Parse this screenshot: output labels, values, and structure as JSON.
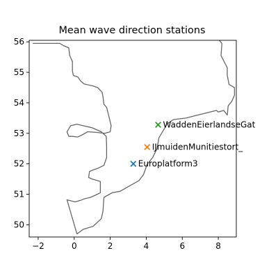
{
  "chart_data": {
    "type": "scatter",
    "title": "Mean wave direction stations",
    "xlabel": "",
    "ylabel": "",
    "xlim": [
      -2.5,
      9.0
    ],
    "ylim": [
      49.6,
      56.05
    ],
    "xticks": [
      -2,
      0,
      2,
      4,
      6,
      8
    ],
    "yticks": [
      50,
      51,
      52,
      53,
      54,
      55,
      56
    ],
    "grid": false,
    "legend": "none",
    "coastline_color": "#666666",
    "points": [
      {
        "name": "Europlatform3",
        "x": 3.28,
        "y": 52.0,
        "marker": "x",
        "color": "#1f77b4"
      },
      {
        "name": "IJmuidenMunitiestort_",
        "x": 4.05,
        "y": 52.55,
        "marker": "x",
        "color": "#ff7f0e"
      },
      {
        "name": "WaddenEierlandseGat",
        "x": 4.66,
        "y": 53.28,
        "marker": "x",
        "color": "#2ca02c"
      }
    ],
    "coastline": [
      [
        [
          -2.3,
          55.95
        ],
        [
          -0.8,
          55.95
        ],
        [
          -0.6,
          55.88
        ],
        [
          -0.3,
          55.8
        ],
        [
          -0.25,
          55.55
        ],
        [
          -0.1,
          55.35
        ],
        [
          -0.1,
          55.05
        ],
        [
          -0.05,
          54.9
        ],
        [
          0.2,
          54.85
        ],
        [
          0.35,
          54.72
        ],
        [
          0.55,
          54.62
        ],
        [
          1.05,
          54.55
        ],
        [
          1.3,
          54.5
        ],
        [
          1.55,
          54.35
        ],
        [
          1.6,
          54.2
        ],
        [
          1.65,
          53.95
        ],
        [
          1.8,
          53.85
        ],
        [
          1.9,
          53.62
        ],
        [
          1.95,
          53.5
        ],
        [
          2.05,
          53.25
        ],
        [
          2.0,
          53.05
        ],
        [
          1.7,
          53.0
        ],
        [
          1.25,
          53.03
        ],
        [
          0.75,
          53.05
        ],
        [
          0.45,
          52.95
        ],
        [
          0.2,
          52.88
        ],
        [
          -0.1,
          52.9
        ],
        [
          -0.3,
          52.9
        ],
        [
          -0.4,
          53.05
        ],
        [
          -0.2,
          53.25
        ],
        [
          0.15,
          53.3
        ],
        [
          0.5,
          53.25
        ],
        [
          1.0,
          53.18
        ],
        [
          1.5,
          53.05
        ],
        [
          1.78,
          52.9
        ],
        [
          1.8,
          52.55
        ],
        [
          1.8,
          52.2
        ],
        [
          1.65,
          51.95
        ],
        [
          1.3,
          51.85
        ],
        [
          1.05,
          51.8
        ],
        [
          0.85,
          51.75
        ],
        [
          0.8,
          51.55
        ],
        [
          1.0,
          51.5
        ],
        [
          1.45,
          51.42
        ],
        [
          1.45,
          51.05
        ],
        [
          1.2,
          50.98
        ],
        [
          0.9,
          50.9
        ],
        [
          0.55,
          50.85
        ],
        [
          0.35,
          50.8
        ],
        [
          0.05,
          50.75
        ],
        [
          -0.4,
          50.82
        ],
        [
          0.15,
          49.7
        ],
        [
          0.5,
          49.85
        ],
        [
          1.05,
          49.95
        ],
        [
          1.5,
          50.2
        ],
        [
          1.6,
          50.45
        ],
        [
          1.65,
          50.9
        ],
        [
          2.1,
          51.05
        ],
        [
          2.55,
          51.1
        ],
        [
          3.0,
          51.25
        ],
        [
          3.6,
          51.45
        ],
        [
          3.85,
          51.65
        ],
        [
          4.05,
          51.98
        ],
        [
          4.35,
          52.2
        ],
        [
          4.6,
          52.5
        ],
        [
          4.7,
          52.85
        ],
        [
          4.95,
          53.1
        ],
        [
          5.15,
          53.3
        ],
        [
          5.5,
          53.45
        ],
        [
          6.2,
          53.5
        ],
        [
          7.0,
          53.62
        ],
        [
          7.9,
          53.75
        ],
        [
          8.0,
          53.7
        ],
        [
          8.3,
          53.75
        ],
        [
          8.5,
          53.6
        ],
        [
          8.55,
          53.9
        ],
        [
          8.75,
          54.05
        ],
        [
          8.9,
          54.25
        ],
        [
          8.9,
          54.5
        ],
        [
          8.6,
          54.6
        ],
        [
          8.5,
          54.9
        ],
        [
          8.5,
          55.15
        ],
        [
          8.15,
          55.55
        ],
        [
          8.2,
          55.95
        ],
        [
          8.05,
          56.05
        ]
      ]
    ]
  }
}
